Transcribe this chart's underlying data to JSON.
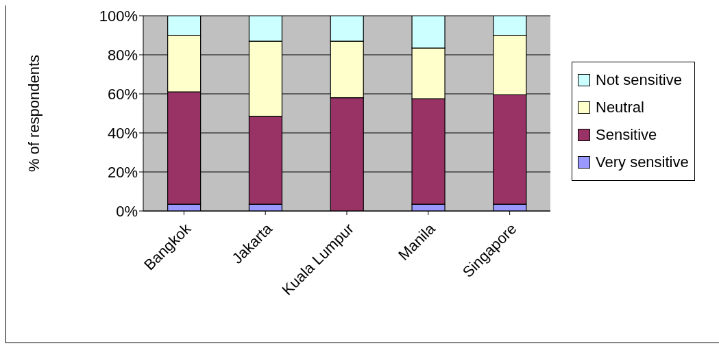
{
  "chart_data": {
    "type": "bar",
    "stacked": true,
    "ylabel": "% of respondents",
    "categories": [
      "Bangkok",
      "Jakarta",
      "Kuala Lumpur",
      "Manila",
      "Singapore"
    ],
    "series": [
      {
        "name": "Very sensitive",
        "color": "#9999ff",
        "values": [
          3.5,
          3.5,
          0,
          3.5,
          3.5
        ]
      },
      {
        "name": "Sensitive",
        "color": "#993366",
        "values": [
          57.5,
          45,
          58,
          54,
          56
        ]
      },
      {
        "name": "Neutral",
        "color": "#ffffcc",
        "values": [
          29,
          38.5,
          29,
          26,
          30.5
        ]
      },
      {
        "name": "Not sensitive",
        "color": "#ccffff",
        "values": [
          10,
          13,
          13,
          16.5,
          10
        ]
      }
    ],
    "ylim": [
      0,
      100
    ],
    "yticks": [
      {
        "value": 0,
        "label": "0%"
      },
      {
        "value": 20,
        "label": "20%"
      },
      {
        "value": 40,
        "label": "40%"
      },
      {
        "value": 60,
        "label": "60%"
      },
      {
        "value": 80,
        "label": "80%"
      },
      {
        "value": 100,
        "label": "100%"
      }
    ],
    "grid": "y",
    "legend": "right"
  }
}
